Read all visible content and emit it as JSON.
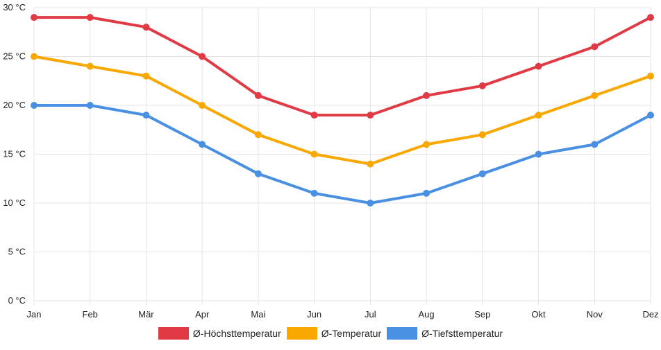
{
  "chart_data": {
    "type": "line",
    "title": "",
    "xlabel": "",
    "ylabel": "",
    "categories": [
      "Jan",
      "Feb",
      "Mär",
      "Apr",
      "Mai",
      "Jun",
      "Jul",
      "Aug",
      "Sep",
      "Okt",
      "Nov",
      "Dez"
    ],
    "ylim": [
      0,
      30
    ],
    "y_ticks": [
      {
        "value": 0,
        "label": "0 °C"
      },
      {
        "value": 5,
        "label": "5 °C"
      },
      {
        "value": 10,
        "label": "10 °C"
      },
      {
        "value": 15,
        "label": "15 °C"
      },
      {
        "value": 20,
        "label": "20 °C"
      },
      {
        "value": 25,
        "label": "25 °C"
      },
      {
        "value": 30,
        "label": "30 °C"
      }
    ],
    "grid": true,
    "legend_position": "bottom",
    "series": [
      {
        "name": "Ø-Höchsttemperatur",
        "color": "#e03a45",
        "values": [
          29,
          29,
          28,
          25,
          21,
          19,
          19,
          21,
          22,
          24,
          26,
          29
        ]
      },
      {
        "name": "Ø-Temperatur",
        "color": "#f8a800",
        "values": [
          25,
          24,
          23,
          20,
          17,
          15,
          14,
          16,
          17,
          19,
          21,
          23
        ]
      },
      {
        "name": "Ø-Tiefsttemperatur",
        "color": "#4a90e2",
        "values": [
          20,
          20,
          19,
          16,
          13,
          11,
          10,
          11,
          13,
          15,
          16,
          19
        ]
      }
    ]
  }
}
